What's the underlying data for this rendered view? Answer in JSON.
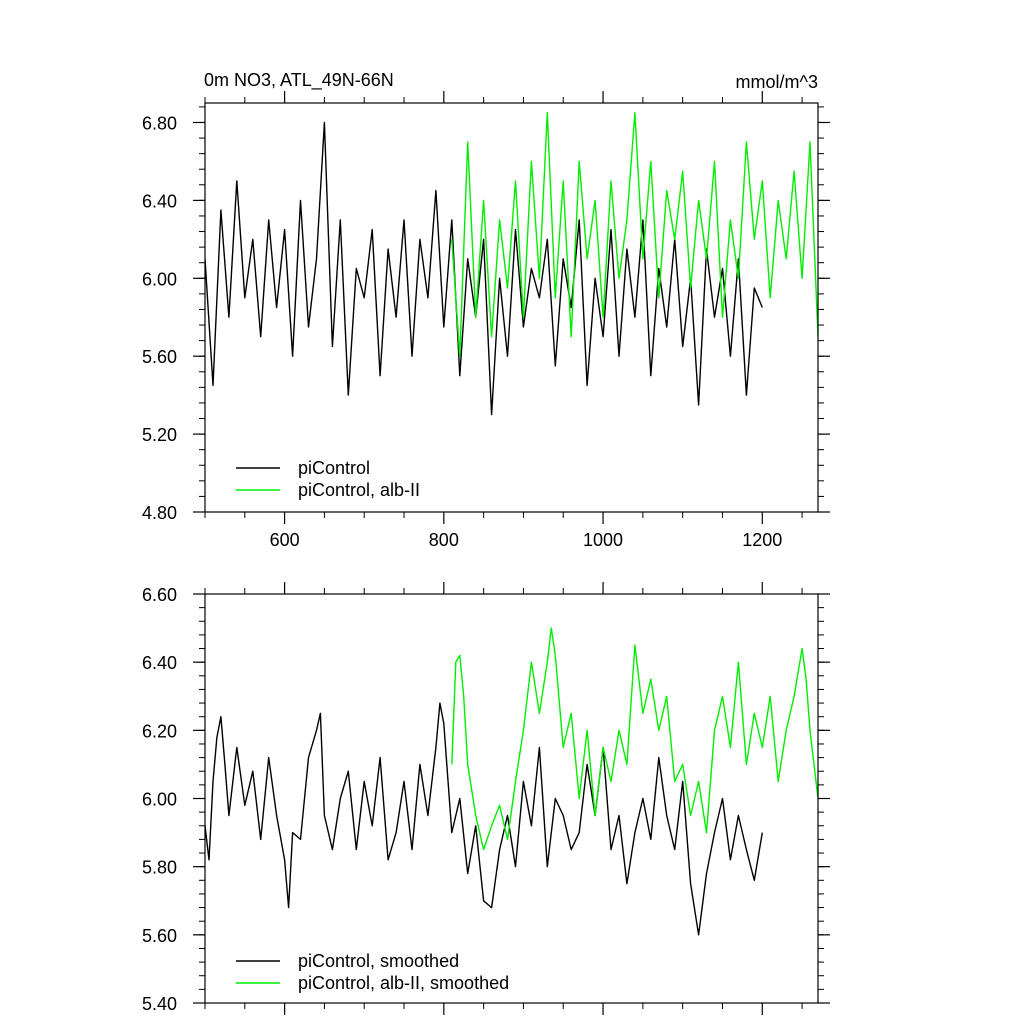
{
  "colors": {
    "series_black": "#000000",
    "series_green": "#00ee00",
    "axis": "#000000",
    "background": "#ffffff"
  },
  "chart_data": [
    {
      "type": "line",
      "title_left": "0m NO3, ATL_49N-66N",
      "title_right": "mmol/m^3",
      "xlabel": "",
      "ylabel": "",
      "xlim": [
        500,
        1270
      ],
      "ylim": [
        4.8,
        6.9
      ],
      "x_ticks": [
        600,
        800,
        1000,
        1200
      ],
      "x_tick_labels": [
        "600",
        "800",
        "1000",
        "1200"
      ],
      "y_ticks": [
        4.8,
        5.2,
        5.6,
        6.0,
        6.4,
        6.8
      ],
      "y_tick_labels": [
        "4.80",
        "5.20",
        "5.60",
        "6.00",
        "6.40",
        "6.80"
      ],
      "grid": false,
      "legend_position": "bottom-left",
      "series": [
        {
          "name": "piControl",
          "color": "#000000",
          "x": [
            500,
            510,
            520,
            530,
            540,
            550,
            560,
            570,
            580,
            590,
            600,
            610,
            620,
            630,
            640,
            650,
            660,
            670,
            680,
            690,
            700,
            710,
            720,
            730,
            740,
            750,
            760,
            770,
            780,
            790,
            800,
            810,
            820,
            830,
            840,
            850,
            860,
            870,
            880,
            890,
            900,
            910,
            920,
            930,
            940,
            950,
            960,
            970,
            980,
            990,
            1000,
            1010,
            1020,
            1030,
            1040,
            1050,
            1060,
            1070,
            1080,
            1090,
            1100,
            1110,
            1120,
            1130,
            1140,
            1150,
            1160,
            1170,
            1180,
            1190,
            1200
          ],
          "y": [
            6.1,
            5.45,
            6.35,
            5.8,
            6.5,
            5.9,
            6.2,
            5.7,
            6.3,
            5.85,
            6.25,
            5.6,
            6.4,
            5.75,
            6.1,
            6.8,
            5.65,
            6.3,
            5.4,
            6.05,
            5.9,
            6.25,
            5.5,
            6.15,
            5.8,
            6.3,
            5.6,
            6.2,
            5.9,
            6.45,
            5.75,
            6.3,
            5.5,
            6.1,
            5.8,
            6.2,
            5.3,
            6.0,
            5.6,
            6.25,
            5.75,
            6.05,
            5.9,
            6.2,
            5.55,
            6.1,
            5.85,
            6.3,
            5.45,
            6.0,
            5.7,
            6.25,
            5.6,
            6.15,
            5.8,
            6.3,
            5.5,
            6.05,
            5.75,
            6.2,
            5.65,
            6.0,
            5.35,
            6.15,
            5.8,
            6.05,
            5.6,
            6.1,
            5.4,
            5.95,
            5.85
          ]
        },
        {
          "name": "piControl, alb-II",
          "color": "#00ee00",
          "x": [
            810,
            820,
            830,
            840,
            850,
            860,
            870,
            880,
            890,
            900,
            910,
            920,
            930,
            940,
            950,
            960,
            970,
            980,
            990,
            1000,
            1010,
            1020,
            1030,
            1040,
            1050,
            1060,
            1070,
            1080,
            1090,
            1100,
            1110,
            1120,
            1130,
            1140,
            1150,
            1160,
            1170,
            1180,
            1190,
            1200,
            1210,
            1220,
            1230,
            1240,
            1250,
            1260,
            1270
          ],
          "y": [
            6.2,
            5.6,
            6.7,
            5.8,
            6.4,
            5.7,
            6.3,
            5.95,
            6.5,
            5.8,
            6.6,
            6.0,
            6.85,
            5.9,
            6.5,
            5.7,
            6.6,
            6.1,
            6.4,
            5.8,
            6.5,
            6.0,
            6.3,
            6.85,
            6.1,
            6.6,
            5.9,
            6.45,
            6.2,
            6.55,
            5.95,
            6.4,
            6.1,
            6.6,
            5.8,
            6.3,
            6.0,
            6.7,
            6.2,
            6.5,
            5.9,
            6.4,
            6.1,
            6.55,
            6.0,
            6.7,
            5.7
          ]
        }
      ]
    },
    {
      "type": "line",
      "xlabel": "",
      "ylabel": "",
      "xlim": [
        500,
        1270
      ],
      "ylim": [
        5.4,
        6.6
      ],
      "x_ticks": [
        600,
        800,
        1000,
        1200
      ],
      "y_ticks": [
        5.4,
        5.6,
        5.8,
        6.0,
        6.2,
        6.4,
        6.6
      ],
      "y_tick_labels": [
        "5.40",
        "5.60",
        "5.80",
        "6.00",
        "6.20",
        "6.40",
        "6.60"
      ],
      "grid": false,
      "legend_position": "bottom-left",
      "series": [
        {
          "name": "piControl, smoothed",
          "color": "#000000",
          "x": [
            500,
            505,
            510,
            515,
            520,
            525,
            530,
            540,
            550,
            560,
            570,
            580,
            590,
            600,
            605,
            610,
            620,
            630,
            640,
            645,
            650,
            660,
            670,
            680,
            690,
            700,
            710,
            720,
            730,
            740,
            750,
            760,
            770,
            780,
            790,
            795,
            800,
            810,
            820,
            830,
            840,
            850,
            860,
            870,
            880,
            890,
            900,
            910,
            920,
            930,
            940,
            950,
            960,
            970,
            980,
            990,
            1000,
            1010,
            1020,
            1030,
            1040,
            1050,
            1060,
            1070,
            1080,
            1090,
            1100,
            1110,
            1120,
            1130,
            1140,
            1150,
            1160,
            1170,
            1180,
            1190,
            1200
          ],
          "y": [
            5.92,
            5.82,
            6.05,
            6.18,
            6.24,
            6.1,
            5.95,
            6.15,
            5.98,
            6.08,
            5.88,
            6.12,
            5.95,
            5.82,
            5.68,
            5.9,
            5.88,
            6.12,
            6.2,
            6.25,
            5.95,
            5.85,
            6.0,
            6.08,
            5.85,
            6.05,
            5.92,
            6.12,
            5.82,
            5.9,
            6.05,
            5.85,
            6.1,
            5.95,
            6.15,
            6.28,
            6.22,
            5.9,
            6.0,
            5.78,
            5.92,
            5.7,
            5.68,
            5.85,
            5.95,
            5.8,
            6.05,
            5.92,
            6.15,
            5.8,
            6.0,
            5.95,
            5.85,
            5.9,
            6.1,
            5.95,
            6.15,
            5.85,
            5.95,
            5.75,
            5.9,
            6.0,
            5.88,
            6.12,
            5.95,
            5.85,
            6.05,
            5.75,
            5.6,
            5.78,
            5.9,
            6.0,
            5.82,
            5.95,
            5.85,
            5.76,
            5.9
          ]
        },
        {
          "name": "piControl, alb-II, smoothed",
          "color": "#00ee00",
          "x": [
            810,
            815,
            820,
            825,
            830,
            840,
            850,
            860,
            870,
            880,
            890,
            900,
            910,
            920,
            930,
            935,
            940,
            950,
            960,
            970,
            980,
            990,
            1000,
            1010,
            1020,
            1030,
            1040,
            1050,
            1060,
            1070,
            1080,
            1090,
            1100,
            1110,
            1120,
            1130,
            1140,
            1150,
            1160,
            1170,
            1180,
            1190,
            1200,
            1210,
            1220,
            1230,
            1240,
            1250,
            1255,
            1260,
            1270
          ],
          "y": [
            6.1,
            6.4,
            6.42,
            6.3,
            6.1,
            5.95,
            5.85,
            5.92,
            5.98,
            5.88,
            6.05,
            6.2,
            6.4,
            6.25,
            6.4,
            6.5,
            6.42,
            6.15,
            6.25,
            6.0,
            6.2,
            5.95,
            6.15,
            6.05,
            6.2,
            6.1,
            6.45,
            6.25,
            6.35,
            6.2,
            6.3,
            6.05,
            6.1,
            5.95,
            6.05,
            5.9,
            6.2,
            6.3,
            6.15,
            6.4,
            6.1,
            6.25,
            6.15,
            6.3,
            6.05,
            6.2,
            6.3,
            6.44,
            6.35,
            6.2,
            6.0
          ]
        }
      ]
    }
  ]
}
